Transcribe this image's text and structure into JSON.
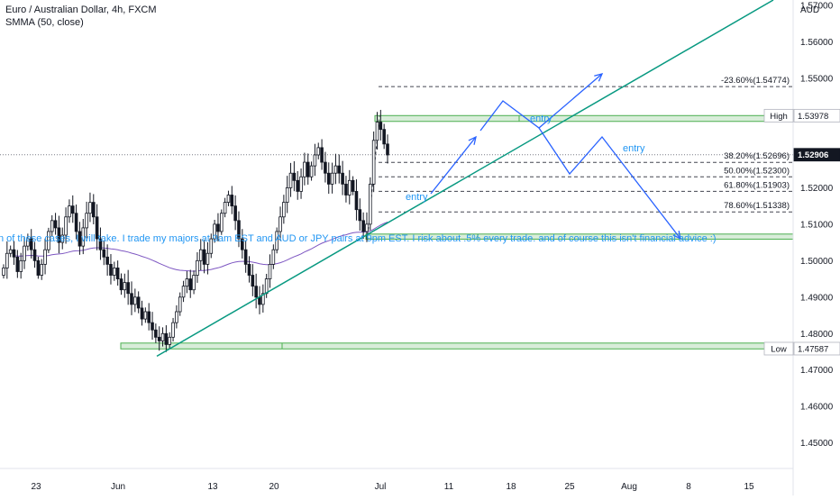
{
  "legend": {
    "symbol": "Euro / Australian Dollar, 4h, FXCM",
    "indicator": "SMMA (50, close)"
  },
  "colors": {
    "up": "#26a69a",
    "down": "#131722",
    "candle_body": "#131722",
    "smma": "#7e57c2",
    "trendline": "#089981",
    "arrows": "#2962ff",
    "zone_fill": "#c8e6c9",
    "zone_border": "#4caf50",
    "annotation_text": "#2196f3",
    "price_tag": "#131722"
  },
  "chart_data": {
    "type": "candlestick",
    "instrument": "Euro / Australian Dollar",
    "timeframe": "4h",
    "source": "FXCM",
    "y_axis_unit": "AUD",
    "ylim": [
      1.443,
      1.5715
    ],
    "y_ticks": [
      1.45,
      1.46,
      1.47,
      1.48,
      1.49,
      1.5,
      1.51,
      1.52,
      1.53,
      1.54,
      1.55,
      1.56,
      1.57
    ],
    "y_tick_labels": [
      "1.45000",
      "1.46000",
      "1.47000",
      "1.48000",
      "1.49000",
      "1.50000",
      "1.51000",
      "1.52000",
      "1.53000",
      "1.54000",
      "1.55000",
      "1.56000",
      "1.57000"
    ],
    "x_ticks": [
      "23",
      "Jun",
      "13",
      "20",
      "Jul",
      "11",
      "18",
      "25",
      "Aug",
      "8",
      "15"
    ],
    "grid": false,
    "price_tags": {
      "high_label": "High",
      "high_value": "1.53978",
      "low_label": "Low",
      "low_value": "1.47587",
      "last_value": "1.52906"
    },
    "fibonacci_levels": [
      {
        "label": "-23.60%(1.54774)",
        "price": 1.54774
      },
      {
        "label": "38.20%(1.52696)",
        "price": 1.52696
      },
      {
        "label": "50.00%(1.52300)",
        "price": 1.523
      },
      {
        "label": "61.80%(1.51903)",
        "price": 1.51903
      },
      {
        "label": "78.60%(1.51338)",
        "price": 1.51338
      }
    ],
    "annotations": [
      {
        "text": "entry",
        "kind": "label"
      },
      {
        "text": "entry",
        "kind": "label"
      },
      {
        "text": "entry",
        "kind": "label"
      },
      {
        "text": "n of these cases, I will take. I trade my majors at 9am EST and AUD or JPY pairs at 9pm EST.  I risk about .5% every trade.  and of course this isn't financial advice :)",
        "kind": "note"
      }
    ],
    "zones": [
      {
        "name": "resistance-zone",
        "low": 1.5382,
        "high": 1.5398
      },
      {
        "name": "support-zone",
        "low": 1.5059,
        "high": 1.5073
      },
      {
        "name": "low-zone",
        "low": 1.4758,
        "high": 1.4774
      }
    ],
    "smma_period": 50,
    "close_series": [
      1.498,
      1.502,
      1.503,
      1.501,
      1.497,
      1.5,
      1.504,
      1.506,
      1.503,
      1.5,
      1.496,
      1.499,
      1.503,
      1.508,
      1.511,
      1.509,
      1.505,
      1.507,
      1.512,
      1.515,
      1.513,
      1.508,
      1.504,
      1.509,
      1.513,
      1.516,
      1.512,
      1.506,
      1.503,
      1.501,
      1.499,
      1.496,
      1.498,
      1.495,
      1.492,
      1.494,
      1.491,
      1.488,
      1.49,
      1.487,
      1.484,
      1.486,
      1.483,
      1.481,
      1.479,
      1.478,
      1.48,
      1.477,
      1.479,
      1.483,
      1.486,
      1.49,
      1.493,
      1.495,
      1.492,
      1.496,
      1.5,
      1.503,
      1.499,
      1.502,
      1.506,
      1.51,
      1.508,
      1.513,
      1.516,
      1.518,
      1.515,
      1.511,
      1.506,
      1.503,
      1.499,
      1.496,
      1.493,
      1.49,
      1.488,
      1.491,
      1.495,
      1.499,
      1.503,
      1.508,
      1.512,
      1.516,
      1.52,
      1.524,
      1.522,
      1.519,
      1.523,
      1.527,
      1.523,
      1.526,
      1.529,
      1.531,
      1.527,
      1.524,
      1.521,
      1.524,
      1.526,
      1.524,
      1.521,
      1.518,
      1.522,
      1.519,
      1.514,
      1.511,
      1.508,
      1.51,
      1.521,
      1.533,
      1.538,
      1.536,
      1.532,
      1.529
    ]
  }
}
